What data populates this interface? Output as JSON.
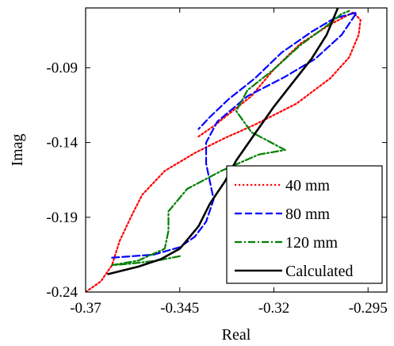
{
  "chart_data": {
    "type": "line",
    "xlabel": "Real",
    "ylabel": "Imag",
    "xlim": [
      -0.37,
      -0.29
    ],
    "ylim": [
      -0.24,
      -0.05
    ],
    "xticks": [
      -0.37,
      -0.345,
      -0.32,
      -0.295
    ],
    "xtick_labels": [
      "-0.37",
      "-0.345",
      "-0.32",
      "-0.295"
    ],
    "yticks": [
      -0.24,
      -0.19,
      -0.14,
      -0.09
    ],
    "ytick_labels": [
      "-0.24",
      "-0.19",
      "-0.14",
      "-0.09"
    ],
    "grid": false,
    "legend_position": "bottom-right",
    "series": [
      {
        "name": "40 mm",
        "color": "#ff0000",
        "style": "dotted",
        "points": [
          [
            -0.37,
            -0.24
          ],
          [
            -0.366,
            -0.233
          ],
          [
            -0.363,
            -0.222
          ],
          [
            -0.361,
            -0.206
          ],
          [
            -0.358,
            -0.19
          ],
          [
            -0.355,
            -0.175
          ],
          [
            -0.349,
            -0.159
          ],
          [
            -0.341,
            -0.147
          ],
          [
            -0.333,
            -0.137
          ],
          [
            -0.325,
            -0.128
          ],
          [
            -0.314,
            -0.114
          ],
          [
            -0.305,
            -0.097
          ],
          [
            -0.3,
            -0.083
          ],
          [
            -0.2975,
            -0.068
          ],
          [
            -0.297,
            -0.058
          ],
          [
            -0.299,
            -0.053
          ],
          [
            -0.305,
            -0.061
          ],
          [
            -0.313,
            -0.074
          ],
          [
            -0.32,
            -0.091
          ],
          [
            -0.326,
            -0.109
          ],
          [
            -0.331,
            -0.119
          ],
          [
            -0.336,
            -0.129
          ],
          [
            -0.34,
            -0.136
          ]
        ]
      },
      {
        "name": "80 mm",
        "color": "#0000ff",
        "style": "dashed",
        "points": [
          [
            -0.363,
            -0.217
          ],
          [
            -0.352,
            -0.215
          ],
          [
            -0.345,
            -0.21
          ],
          [
            -0.341,
            -0.203
          ],
          [
            -0.338,
            -0.193
          ],
          [
            -0.336,
            -0.178
          ],
          [
            -0.337,
            -0.166
          ],
          [
            -0.338,
            -0.154
          ],
          [
            -0.338,
            -0.14
          ],
          [
            -0.335,
            -0.126
          ],
          [
            -0.327,
            -0.109
          ],
          [
            -0.317,
            -0.096
          ],
          [
            -0.309,
            -0.084
          ],
          [
            -0.302,
            -0.068
          ],
          [
            -0.298,
            -0.053
          ],
          [
            -0.304,
            -0.057
          ],
          [
            -0.31,
            -0.066
          ],
          [
            -0.318,
            -0.08
          ],
          [
            -0.325,
            -0.097
          ],
          [
            -0.332,
            -0.111
          ],
          [
            -0.337,
            -0.123
          ],
          [
            -0.34,
            -0.131
          ]
        ]
      },
      {
        "name": "120 mm",
        "color": "#008000",
        "style": "dashdot",
        "points": [
          [
            -0.345,
            -0.216
          ],
          [
            -0.351,
            -0.219
          ],
          [
            -0.358,
            -0.221
          ],
          [
            -0.363,
            -0.222
          ],
          [
            -0.356,
            -0.219
          ],
          [
            -0.349,
            -0.211
          ],
          [
            -0.348,
            -0.199
          ],
          [
            -0.348,
            -0.186
          ],
          [
            -0.343,
            -0.171
          ],
          [
            -0.334,
            -0.159
          ],
          [
            -0.324,
            -0.148
          ],
          [
            -0.317,
            -0.145
          ],
          [
            -0.326,
            -0.133
          ],
          [
            -0.33,
            -0.119
          ],
          [
            -0.327,
            -0.105
          ],
          [
            -0.32,
            -0.091
          ],
          [
            -0.313,
            -0.075
          ],
          [
            -0.306,
            -0.062
          ],
          [
            -0.302,
            -0.054
          ],
          [
            -0.3,
            -0.052
          ]
        ]
      },
      {
        "name": "Calculated",
        "color": "#000000",
        "style": "solid",
        "points": [
          [
            -0.364,
            -0.228
          ],
          [
            -0.356,
            -0.223
          ],
          [
            -0.35,
            -0.218
          ],
          [
            -0.345,
            -0.211
          ],
          [
            -0.34,
            -0.196
          ],
          [
            -0.337,
            -0.181
          ],
          [
            -0.333,
            -0.166
          ],
          [
            -0.33,
            -0.152
          ],
          [
            -0.325,
            -0.134
          ],
          [
            -0.32,
            -0.116
          ],
          [
            -0.315,
            -0.1
          ],
          [
            -0.31,
            -0.084
          ],
          [
            -0.306,
            -0.068
          ],
          [
            -0.303,
            -0.05
          ]
        ]
      }
    ]
  }
}
